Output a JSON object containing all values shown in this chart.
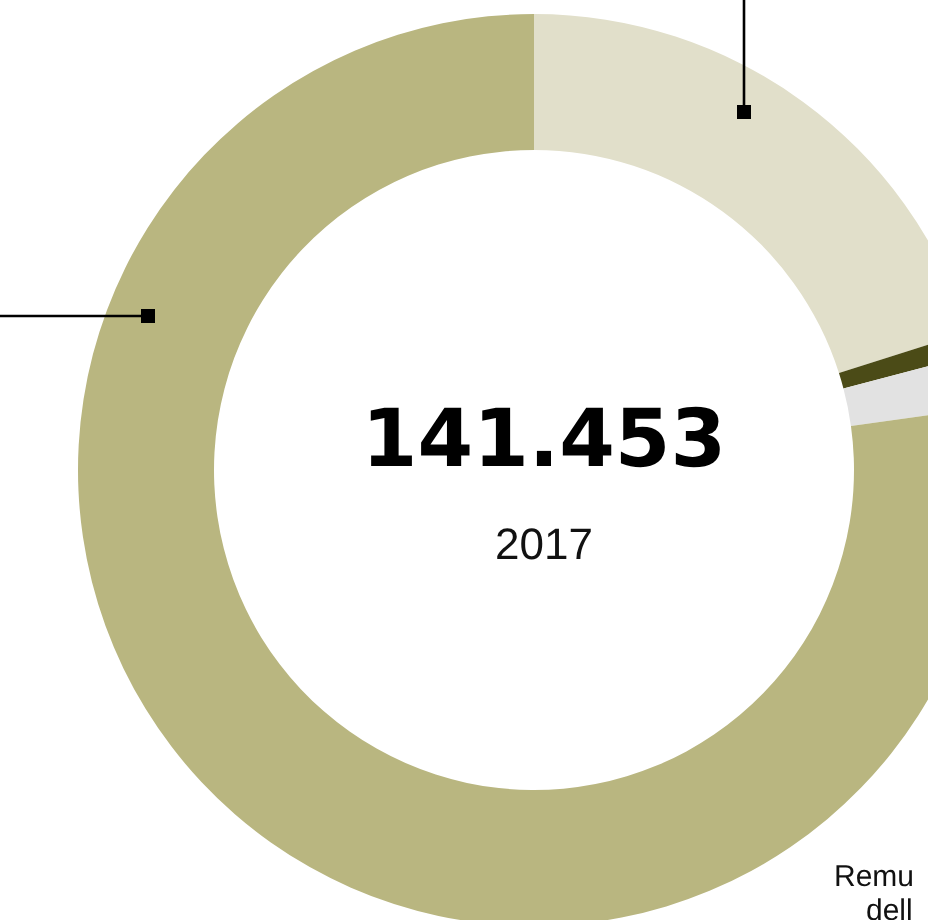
{
  "chart_data": {
    "type": "donut",
    "title": "141.453",
    "subtitle": "2017",
    "categories": [
      null,
      null,
      null,
      null
    ],
    "values": [
      20.1,
      0.8,
      1.9,
      77.2
    ],
    "colors": [
      "#e1dfca",
      "#4b4b17",
      "#e2e2e2",
      "#b9b680"
    ],
    "annotations": [
      "Remu",
      "dell"
    ]
  }
}
